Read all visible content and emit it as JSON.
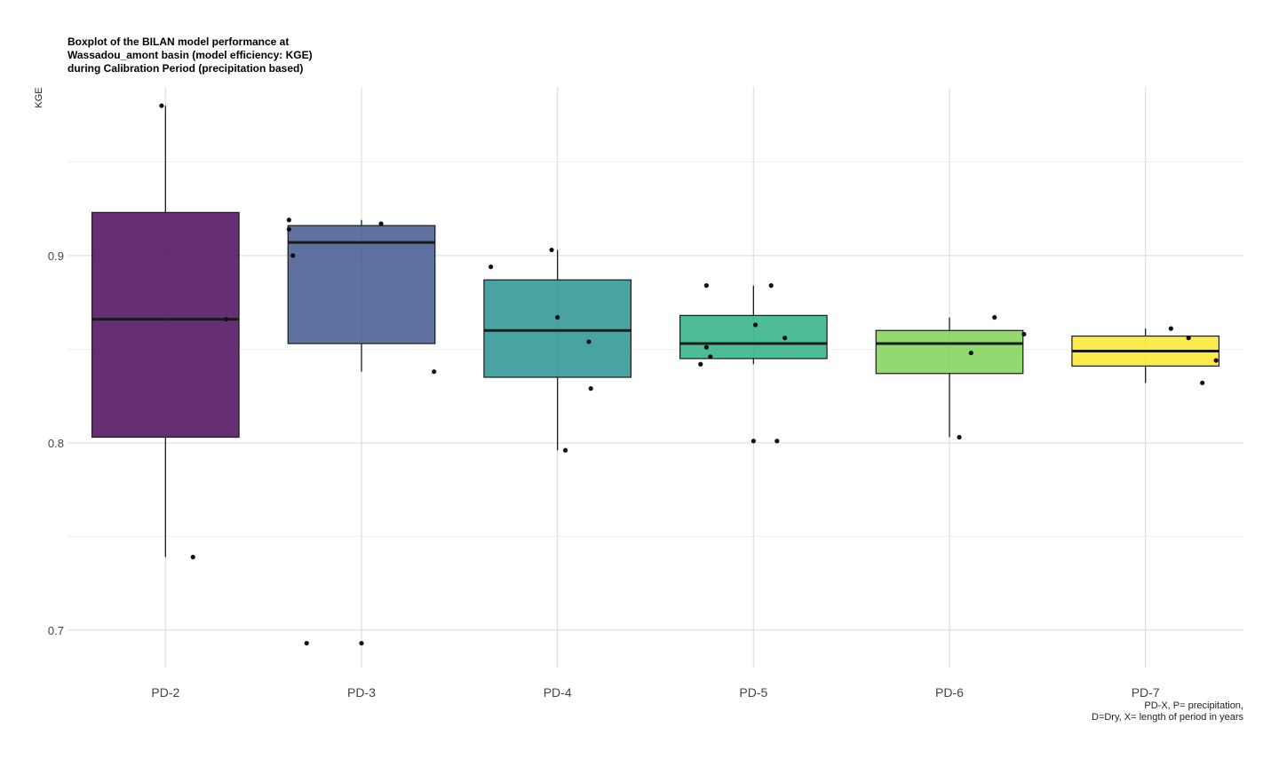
{
  "chart_data": {
    "type": "boxplot",
    "title": "Boxplot of the BILAN model performance at\nWassadou_amont basin (model efficiency: KGE)\nduring Calibration Period (precipitation based)",
    "ylabel": "KGE",
    "xlabel": "",
    "caption": "PD-X, P= precipitation,\nD=Dry, X= length of period in years",
    "ylim": [
      0.68,
      0.99
    ],
    "yticks": [
      0.7,
      0.8,
      0.9
    ],
    "ytick_labels": [
      "0.7",
      "0.8",
      "0.9"
    ],
    "grid": true,
    "legend": "none",
    "categories": [
      "PD-2",
      "PD-3",
      "PD-4",
      "PD-5",
      "PD-6",
      "PD-7"
    ],
    "boxes": [
      {
        "category": "PD-2",
        "color": "#440154",
        "whisker_low": 0.739,
        "q1": 0.803,
        "median": 0.866,
        "q3": 0.923,
        "whisker_high": 0.98,
        "points": [
          [
            -0.02,
            0.98
          ],
          [
            0.31,
            0.866
          ],
          [
            0.14,
            0.739
          ]
        ]
      },
      {
        "category": "PD-3",
        "color": "#3B528B",
        "whisker_low": 0.838,
        "q1": 0.853,
        "median": 0.907,
        "q3": 0.916,
        "whisker_high": 0.919,
        "points": [
          [
            -0.37,
            0.919
          ],
          [
            -0.37,
            0.914
          ],
          [
            -0.35,
            0.9
          ],
          [
            0.1,
            0.917
          ],
          [
            0.37,
            0.838
          ],
          [
            -0.28,
            0.693
          ],
          [
            0.0,
            0.693
          ]
        ]
      },
      {
        "category": "PD-4",
        "color": "#21908C",
        "whisker_low": 0.796,
        "q1": 0.835,
        "median": 0.86,
        "q3": 0.887,
        "whisker_high": 0.903,
        "points": [
          [
            -0.34,
            0.894
          ],
          [
            -0.03,
            0.903
          ],
          [
            0.0,
            0.867
          ],
          [
            0.16,
            0.854
          ],
          [
            0.17,
            0.829
          ],
          [
            0.04,
            0.796
          ]
        ]
      },
      {
        "category": "PD-5",
        "color": "#27AD81",
        "whisker_low": 0.842,
        "q1": 0.845,
        "median": 0.853,
        "q3": 0.868,
        "whisker_high": 0.884,
        "points": [
          [
            -0.24,
            0.884
          ],
          [
            0.09,
            0.884
          ],
          [
            0.01,
            0.863
          ],
          [
            0.16,
            0.856
          ],
          [
            -0.24,
            0.851
          ],
          [
            -0.22,
            0.846
          ],
          [
            -0.27,
            0.842
          ],
          [
            0.0,
            0.801
          ],
          [
            0.12,
            0.801
          ]
        ]
      },
      {
        "category": "PD-6",
        "color": "#7AD151",
        "whisker_low": 0.803,
        "q1": 0.837,
        "median": 0.853,
        "q3": 0.86,
        "whisker_high": 0.867,
        "points": [
          [
            0.23,
            0.867
          ],
          [
            0.38,
            0.858
          ],
          [
            0.11,
            0.848
          ],
          [
            0.05,
            0.803
          ]
        ]
      },
      {
        "category": "PD-7",
        "color": "#FDE725",
        "whisker_low": 0.832,
        "q1": 0.841,
        "median": 0.849,
        "q3": 0.857,
        "whisker_high": 0.861,
        "points": [
          [
            0.13,
            0.861
          ],
          [
            0.22,
            0.856
          ],
          [
            0.36,
            0.844
          ],
          [
            0.29,
            0.832
          ]
        ]
      }
    ]
  }
}
